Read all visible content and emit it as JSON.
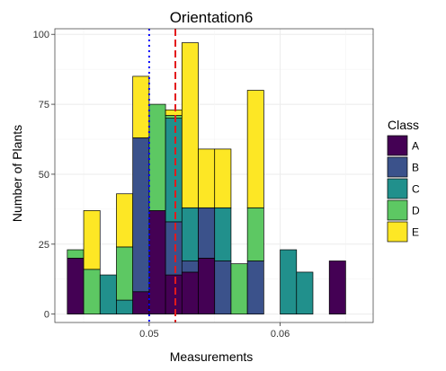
{
  "chart_data": {
    "type": "bar",
    "stacked": true,
    "title": "Orientation6",
    "xlabel": "Measurements",
    "ylabel": "Number of Plants",
    "xlim": [
      0.0428,
      0.0671
    ],
    "ylim": [
      -3,
      102
    ],
    "x_ticks": [
      {
        "value": 0.05,
        "label": "0.05"
      },
      {
        "value": 0.06,
        "label": "0.06"
      }
    ],
    "y_ticks": [
      {
        "value": 0,
        "label": "0"
      },
      {
        "value": 25,
        "label": "25"
      },
      {
        "value": 50,
        "label": "50"
      },
      {
        "value": 75,
        "label": "75"
      },
      {
        "value": 100,
        "label": "100"
      }
    ],
    "bin_width": 0.00125,
    "bin_starts": [
      0.04375,
      0.045,
      0.04625,
      0.0475,
      0.04875,
      0.05,
      0.05125,
      0.0525,
      0.05375,
      0.055,
      0.05625,
      0.0575,
      0.05875,
      0.06,
      0.06125,
      0.0625,
      0.06375
    ],
    "series": [
      {
        "name": "A",
        "color": "#440154",
        "values": [
          20,
          0,
          0,
          0,
          8,
          37,
          14,
          15,
          20,
          0,
          0,
          0,
          0,
          0,
          0,
          0,
          19
        ]
      },
      {
        "name": "B",
        "color": "#3B528B",
        "values": [
          0,
          0,
          0,
          0,
          55,
          0,
          19,
          4,
          18,
          19,
          0,
          19,
          0,
          0,
          0,
          0,
          0
        ]
      },
      {
        "name": "C",
        "color": "#21908C",
        "values": [
          0,
          0,
          14,
          5,
          0,
          0,
          37,
          19,
          0,
          19,
          0,
          0,
          0,
          23,
          15,
          0,
          0
        ]
      },
      {
        "name": "D",
        "color": "#5DC863",
        "values": [
          3,
          16,
          0,
          19,
          0,
          38,
          1,
          0,
          0,
          0,
          18,
          19,
          0,
          0,
          0,
          0,
          0
        ]
      },
      {
        "name": "E",
        "color": "#FDE725",
        "values": [
          0,
          21,
          0,
          19,
          22,
          0,
          2,
          59,
          21,
          21,
          0,
          42,
          0,
          0,
          0,
          0,
          0
        ]
      }
    ],
    "vlines": [
      {
        "x": 0.05,
        "color": "#0000FF",
        "style": "dotted"
      },
      {
        "x": 0.052,
        "color": "#E31A1C",
        "style": "dashed"
      }
    ],
    "legend": {
      "title": "Class",
      "position": "right"
    },
    "grid": true
  }
}
